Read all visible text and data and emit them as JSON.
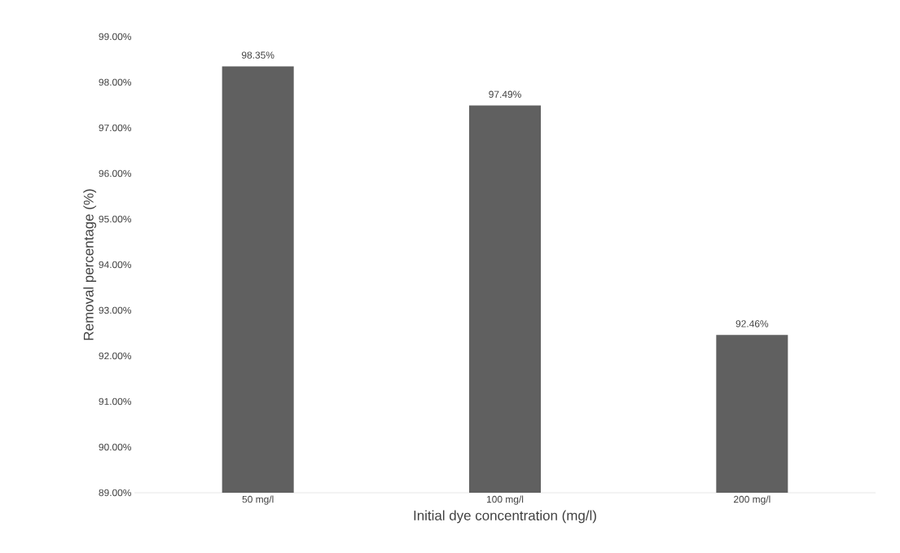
{
  "chart_data": {
    "type": "bar",
    "xlabel": "Initial dye concentration (mg/l)",
    "ylabel": "Removal percentage (%)",
    "categories": [
      "50 mg/l",
      "100 mg/l",
      "200 mg/l"
    ],
    "values": [
      98.35,
      97.49,
      92.46
    ],
    "value_labels": [
      "98.35%",
      "97.49%",
      "92.46%"
    ],
    "color": "#606060",
    "ylim": [
      89,
      99
    ],
    "yticks": [
      {
        "value": 89,
        "label": "89.00%"
      },
      {
        "value": 90,
        "label": "90.00%"
      },
      {
        "value": 91,
        "label": "91.00%"
      },
      {
        "value": 92,
        "label": "92.00%"
      },
      {
        "value": 93,
        "label": "93.00%"
      },
      {
        "value": 94,
        "label": "94.00%"
      },
      {
        "value": 95,
        "label": "95.00%"
      },
      {
        "value": 96,
        "label": "96.00%"
      },
      {
        "value": 97,
        "label": "97.00%"
      },
      {
        "value": 98,
        "label": "98.00%"
      },
      {
        "value": 99,
        "label": "99.00%"
      }
    ]
  }
}
